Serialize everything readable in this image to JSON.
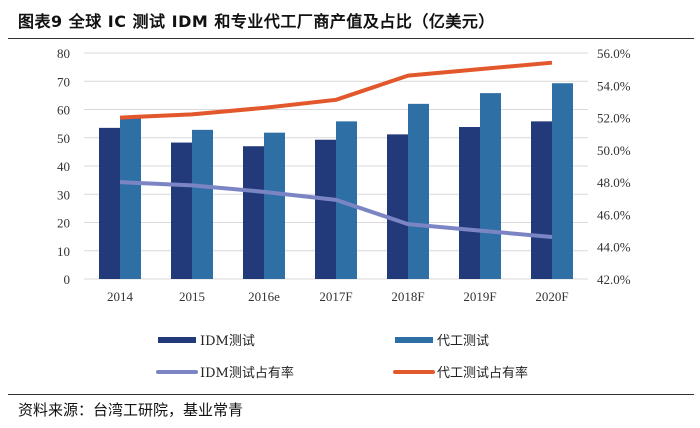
{
  "title": "图表9 全球 IC 测试 IDM 和专业代工厂商产值及占比（亿美元）",
  "source": "资料来源：台湾工研院，基业常青",
  "chart_data": {
    "type": "bar+line",
    "categories": [
      "2014",
      "2015",
      "2016e",
      "2017F",
      "2018F",
      "2019F",
      "2020F"
    ],
    "y_left": {
      "range": [
        0,
        80
      ],
      "ticks": [
        "0",
        "10",
        "20",
        "30",
        "40",
        "50",
        "60",
        "70",
        "80"
      ]
    },
    "y_right": {
      "range": [
        42,
        56
      ],
      "ticks": [
        "42.0%",
        "44.0%",
        "46.0%",
        "48.0%",
        "50.0%",
        "52.0%",
        "54.0%",
        "56.0%"
      ]
    },
    "grid": true,
    "legend_position": "bottom",
    "series": [
      {
        "name": "IDM测试",
        "type": "bar",
        "axis": "left",
        "color": "#233a7a",
        "values": [
          53.5,
          48.3,
          47.0,
          49.3,
          51.2,
          53.8,
          55.8
        ]
      },
      {
        "name": "代工测试",
        "type": "bar",
        "axis": "left",
        "color": "#2e6fa6",
        "values": [
          57.0,
          52.8,
          51.8,
          55.8,
          62.0,
          65.8,
          69.3
        ]
      },
      {
        "name": "IDM测试占有率",
        "type": "line",
        "axis": "right",
        "color": "#7b85c4",
        "values": [
          48.0,
          47.8,
          47.4,
          46.9,
          45.4,
          45.0,
          44.6
        ]
      },
      {
        "name": "代工测试占有率",
        "type": "line",
        "axis": "right",
        "color": "#e2572b",
        "values": [
          52.0,
          52.2,
          52.6,
          53.1,
          54.6,
          55.0,
          55.4
        ]
      }
    ]
  }
}
